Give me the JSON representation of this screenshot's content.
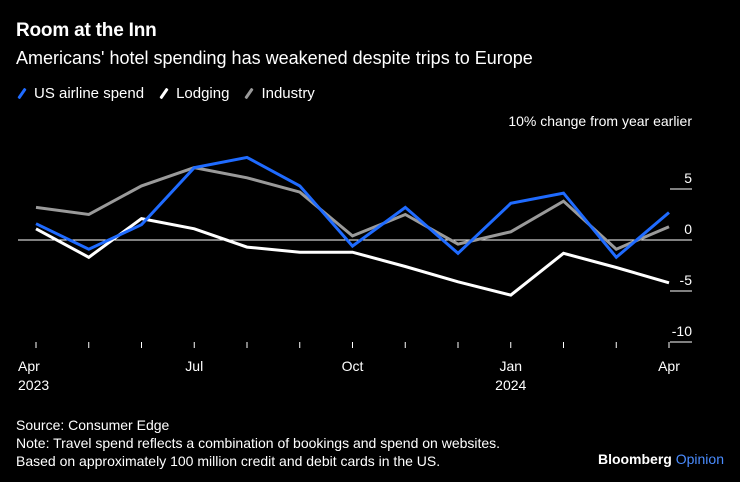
{
  "header": {
    "title": "Room at the Inn",
    "subtitle": "Americans' hotel spending has weakened despite trips to Europe"
  },
  "legend": [
    {
      "label": "US airline spend",
      "color": "#1f6bff"
    },
    {
      "label": "Lodging",
      "color": "#ffffff"
    },
    {
      "label": "Industry",
      "color": "#9a9a9a"
    }
  ],
  "footer": {
    "source": "Source: Consumer Edge",
    "note_line1": "Note: Travel spend reflects a combination of bookings and spend on websites.",
    "note_line2": "Based on approximately 100 million credit and debit cards in the US."
  },
  "brand": {
    "name": "Bloomberg",
    "accent": "Opinion",
    "accent_color": "#4a8cff"
  },
  "chart_data": {
    "type": "line",
    "title": "Room at the Inn",
    "subtitle": "Americans' hotel spending has weakened despite trips to Europe",
    "ylabel": "10% change from year earlier",
    "xlabel": "",
    "ylim": [
      -10,
      10
    ],
    "yticks": [
      5,
      0,
      -5,
      -10
    ],
    "x": [
      "2023-04",
      "2023-05",
      "2023-06",
      "2023-07",
      "2023-08",
      "2023-09",
      "2023-10",
      "2023-11",
      "2023-12",
      "2024-01",
      "2024-02",
      "2024-03",
      "2024-04"
    ],
    "xtick_labels": [
      {
        "index": 0,
        "label": "Apr",
        "year": "2023"
      },
      {
        "index": 3,
        "label": "Jul",
        "year": ""
      },
      {
        "index": 6,
        "label": "Oct",
        "year": ""
      },
      {
        "index": 9,
        "label": "Jan",
        "year": "2024"
      },
      {
        "index": 12,
        "label": "Apr",
        "year": ""
      }
    ],
    "series": [
      {
        "name": "Industry",
        "color": "#9a9a9a",
        "values": [
          3.2,
          2.5,
          5.3,
          7.1,
          6.1,
          4.7,
          0.4,
          2.5,
          -0.4,
          0.8,
          3.8,
          -0.9,
          1.3
        ]
      },
      {
        "name": "Lodging",
        "color": "#ffffff",
        "values": [
          1.1,
          -1.7,
          2.1,
          1.1,
          -0.7,
          -1.2,
          -1.2,
          -2.6,
          -4.1,
          -5.4,
          -1.3,
          -2.7,
          -4.2
        ]
      },
      {
        "name": "US airline spend",
        "color": "#1f6bff",
        "values": [
          1.6,
          -0.9,
          1.5,
          7.1,
          8.1,
          5.3,
          -0.6,
          3.2,
          -1.3,
          3.6,
          4.6,
          -1.7,
          2.7
        ]
      }
    ]
  }
}
